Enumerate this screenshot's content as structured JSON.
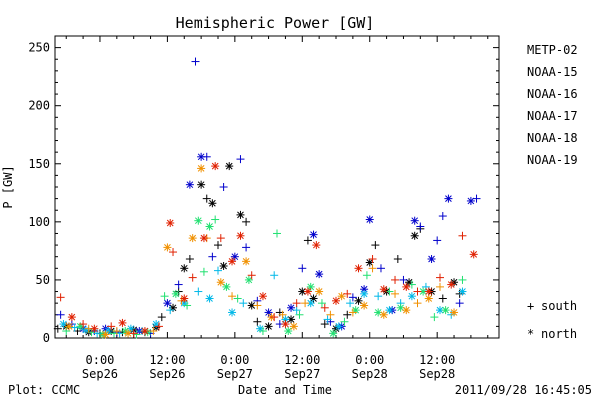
{
  "footer": {
    "left": "Plot: CCMC",
    "center": "Date and Time",
    "right": "2011/09/28 16:45:05"
  },
  "colors": {
    "METP-02": "#000000",
    "NOAA-15": "#0000cc",
    "NOAA-16": "#00b8e8",
    "NOAA-17": "#20e070",
    "NOAA-18": "#f09000",
    "NOAA-19": "#e02000"
  },
  "chart_data": {
    "type": "scatter",
    "title": "Hemispheric Power [GW]",
    "xlabel": "Date and Time",
    "ylabel": "P [GW]",
    "ylim": [
      0,
      260
    ],
    "yticks": [
      0,
      50,
      100,
      150,
      200,
      250
    ],
    "xlim_hours_note": "x is in hours relative to 2011-09-26 00:00",
    "xlim": [
      -8,
      71
    ],
    "xticks": [
      {
        "x": 0,
        "line1": "0:00",
        "line2": "Sep26"
      },
      {
        "x": 12,
        "line1": "12:00",
        "line2": "Sep26"
      },
      {
        "x": 24,
        "line1": "0:00",
        "line2": "Sep27"
      },
      {
        "x": 36,
        "line1": "12:00",
        "line2": "Sep27"
      },
      {
        "x": 48,
        "line1": "0:00",
        "line2": "Sep28"
      },
      {
        "x": 60,
        "line1": "12:00",
        "line2": "Sep28"
      }
    ],
    "legend": {
      "placement": "right",
      "entries": [
        "METP-02",
        "NOAA-15",
        "NOAA-16",
        "NOAA-17",
        "NOAA-18",
        "NOAA-19"
      ],
      "markers": [
        {
          "symbol": "+",
          "label": "south"
        },
        {
          "symbol": "*",
          "label": "north"
        }
      ]
    },
    "grid": false,
    "series": [
      {
        "name": "METP-02",
        "points": [
          [
            -7.5,
            8,
            "+"
          ],
          [
            -6,
            10,
            "*"
          ],
          [
            -4,
            6,
            "+"
          ],
          [
            -2,
            5,
            "*"
          ],
          [
            0,
            4,
            "+"
          ],
          [
            2,
            6,
            "*"
          ],
          [
            4,
            5,
            "+"
          ],
          [
            6,
            7,
            "*"
          ],
          [
            8,
            5,
            "+"
          ],
          [
            10,
            9,
            "*"
          ],
          [
            11,
            18,
            "+"
          ],
          [
            13,
            26,
            "*"
          ],
          [
            14,
            40,
            "+"
          ],
          [
            15,
            60,
            "*"
          ],
          [
            16,
            68,
            "+"
          ],
          [
            18,
            132,
            "*"
          ],
          [
            19,
            120,
            "+"
          ],
          [
            20,
            116,
            "*"
          ],
          [
            21,
            80,
            "+"
          ],
          [
            22,
            62,
            "*"
          ],
          [
            23,
            148,
            "*"
          ],
          [
            25,
            106,
            "*"
          ],
          [
            26,
            100,
            "+"
          ],
          [
            27,
            28,
            "*"
          ],
          [
            28,
            14,
            "+"
          ],
          [
            30,
            10,
            "*"
          ],
          [
            32,
            22,
            "+"
          ],
          [
            34,
            16,
            "*"
          ],
          [
            36,
            40,
            "*"
          ],
          [
            37,
            84,
            "+"
          ],
          [
            38,
            34,
            "*"
          ],
          [
            40,
            12,
            "+"
          ],
          [
            42,
            8,
            "*"
          ],
          [
            44,
            20,
            "+"
          ],
          [
            46,
            32,
            "*"
          ],
          [
            48,
            65,
            "*"
          ],
          [
            49,
            80,
            "+"
          ],
          [
            51,
            40,
            "*"
          ],
          [
            53,
            68,
            "+"
          ],
          [
            55,
            48,
            "*"
          ],
          [
            56,
            88,
            "*"
          ],
          [
            57,
            94,
            "+"
          ],
          [
            59,
            40,
            "*"
          ],
          [
            61,
            34,
            "+"
          ],
          [
            63,
            48,
            "*"
          ],
          [
            64,
            38,
            "+"
          ]
        ]
      },
      {
        "name": "NOAA-15",
        "points": [
          [
            -7,
            20,
            "+"
          ],
          [
            -5,
            12,
            "+"
          ],
          [
            -3,
            8,
            "*"
          ],
          [
            -1,
            6,
            "+"
          ],
          [
            1,
            8,
            "*"
          ],
          [
            3,
            5,
            "+"
          ],
          [
            7,
            6,
            "*"
          ],
          [
            9,
            4,
            "+"
          ],
          [
            12,
            30,
            "*"
          ],
          [
            14,
            46,
            "+"
          ],
          [
            16,
            132,
            "*"
          ],
          [
            17,
            238,
            "+"
          ],
          [
            18,
            156,
            "*"
          ],
          [
            19,
            156,
            "+"
          ],
          [
            20,
            70,
            "+"
          ],
          [
            22,
            130,
            "+"
          ],
          [
            24,
            70,
            "*"
          ],
          [
            25,
            154,
            "+"
          ],
          [
            26,
            78,
            "+"
          ],
          [
            28,
            32,
            "+"
          ],
          [
            30,
            22,
            "*"
          ],
          [
            32,
            12,
            "+"
          ],
          [
            34,
            26,
            "*"
          ],
          [
            36,
            60,
            "+"
          ],
          [
            38,
            89,
            "*"
          ],
          [
            39,
            55,
            "*"
          ],
          [
            41,
            14,
            "+"
          ],
          [
            43,
            10,
            "*"
          ],
          [
            45,
            35,
            "+"
          ],
          [
            47,
            42,
            "*"
          ],
          [
            48,
            102,
            "*"
          ],
          [
            50,
            60,
            "+"
          ],
          [
            52,
            24,
            "*"
          ],
          [
            54,
            50,
            "+"
          ],
          [
            56,
            101,
            "*"
          ],
          [
            57,
            96,
            "+"
          ],
          [
            59,
            68,
            "*"
          ],
          [
            60,
            84,
            "+"
          ],
          [
            61,
            105,
            "+"
          ],
          [
            62,
            120,
            "*"
          ],
          [
            64,
            30,
            "+"
          ],
          [
            66,
            118,
            "*"
          ],
          [
            67,
            120,
            "+"
          ]
        ]
      },
      {
        "name": "NOAA-16",
        "points": [
          [
            -6.5,
            12,
            "*"
          ],
          [
            -4.5,
            9,
            "+"
          ],
          [
            -2.5,
            7,
            "*"
          ],
          [
            -0.5,
            4,
            "+"
          ],
          [
            1.5,
            6,
            "*"
          ],
          [
            3.5,
            4,
            "+"
          ],
          [
            5.5,
            8,
            "*"
          ],
          [
            7.5,
            6,
            "+"
          ],
          [
            10,
            12,
            "*"
          ],
          [
            12.5,
            24,
            "+"
          ],
          [
            15,
            30,
            "*"
          ],
          [
            17.5,
            40,
            "+"
          ],
          [
            19.5,
            34,
            "*"
          ],
          [
            21,
            58,
            "+"
          ],
          [
            23.5,
            22,
            "*"
          ],
          [
            25.5,
            30,
            "+"
          ],
          [
            28.5,
            8,
            "*"
          ],
          [
            31,
            54,
            "+"
          ],
          [
            33,
            16,
            "*"
          ],
          [
            35,
            24,
            "+"
          ],
          [
            37.5,
            30,
            "*"
          ],
          [
            40.5,
            16,
            "+"
          ],
          [
            42.5,
            10,
            "*"
          ],
          [
            44.5,
            30,
            "+"
          ],
          [
            47,
            38,
            "*"
          ],
          [
            49.5,
            36,
            "+"
          ],
          [
            51.5,
            24,
            "*"
          ],
          [
            53.5,
            30,
            "+"
          ],
          [
            55.5,
            36,
            "*"
          ],
          [
            58,
            44,
            "+"
          ],
          [
            60.5,
            24,
            "*"
          ],
          [
            62.5,
            20,
            "+"
          ],
          [
            64.5,
            40,
            "*"
          ]
        ]
      },
      {
        "name": "NOAA-17",
        "points": [
          [
            -6,
            6,
            "+"
          ],
          [
            -3.5,
            10,
            "*"
          ],
          [
            -1.5,
            5,
            "+"
          ],
          [
            0.5,
            3,
            "*"
          ],
          [
            2.5,
            4,
            "+"
          ],
          [
            4.5,
            6,
            "*"
          ],
          [
            6.5,
            3,
            "+"
          ],
          [
            8.5,
            5,
            "*"
          ],
          [
            11.5,
            36,
            "+"
          ],
          [
            13.5,
            38,
            "*"
          ],
          [
            15.5,
            28,
            "+"
          ],
          [
            17.5,
            101,
            "*"
          ],
          [
            18.5,
            57,
            "+"
          ],
          [
            19.5,
            96,
            "*"
          ],
          [
            20.5,
            102,
            "+"
          ],
          [
            22.5,
            44,
            "*"
          ],
          [
            24.5,
            34,
            "+"
          ],
          [
            26.5,
            50,
            "*"
          ],
          [
            29,
            6,
            "+"
          ],
          [
            31.5,
            90,
            "+"
          ],
          [
            33.5,
            6,
            "*"
          ],
          [
            35.5,
            20,
            "+"
          ],
          [
            37.5,
            44,
            "*"
          ],
          [
            39.5,
            30,
            "+"
          ],
          [
            41.5,
            4,
            "*"
          ],
          [
            43.5,
            14,
            "+"
          ],
          [
            45.5,
            24,
            "*"
          ],
          [
            47.5,
            54,
            "+"
          ],
          [
            49.5,
            22,
            "*"
          ],
          [
            51.5,
            40,
            "+"
          ],
          [
            53.5,
            26,
            "*"
          ],
          [
            55.5,
            46,
            "+"
          ],
          [
            57.5,
            40,
            "*"
          ],
          [
            59.5,
            18,
            "+"
          ],
          [
            61.5,
            24,
            "*"
          ],
          [
            64.5,
            50,
            "+"
          ]
        ]
      },
      {
        "name": "NOAA-18",
        "points": [
          [
            -5.5,
            10,
            "*"
          ],
          [
            -2,
            8,
            "+"
          ],
          [
            1,
            3,
            "*"
          ],
          [
            3,
            6,
            "+"
          ],
          [
            5,
            4,
            "*"
          ],
          [
            9.5,
            6,
            "+"
          ],
          [
            12,
            78,
            "*"
          ],
          [
            14.5,
            32,
            "+"
          ],
          [
            16.5,
            86,
            "*"
          ],
          [
            18,
            146,
            "*"
          ],
          [
            19,
            86,
            "+"
          ],
          [
            21.5,
            48,
            "*"
          ],
          [
            23.5,
            36,
            "+"
          ],
          [
            26,
            66,
            "*"
          ],
          [
            28,
            28,
            "+"
          ],
          [
            30.5,
            18,
            "*"
          ],
          [
            32.5,
            20,
            "+"
          ],
          [
            34.5,
            10,
            "*"
          ],
          [
            36.5,
            30,
            "+"
          ],
          [
            39,
            40,
            "*"
          ],
          [
            41,
            20,
            "+"
          ],
          [
            43,
            36,
            "*"
          ],
          [
            45,
            22,
            "+"
          ],
          [
            47,
            28,
            "*"
          ],
          [
            48.5,
            60,
            "+"
          ],
          [
            50.5,
            20,
            "*"
          ],
          [
            52.5,
            38,
            "+"
          ],
          [
            54.5,
            24,
            "*"
          ],
          [
            56.5,
            30,
            "+"
          ],
          [
            58.5,
            34,
            "*"
          ],
          [
            60.5,
            44,
            "+"
          ],
          [
            63,
            22,
            "*"
          ]
        ]
      },
      {
        "name": "NOAA-19",
        "points": [
          [
            -7,
            35,
            "+"
          ],
          [
            -5,
            18,
            "*"
          ],
          [
            -3,
            12,
            "+"
          ],
          [
            -1,
            8,
            "*"
          ],
          [
            2,
            10,
            "+"
          ],
          [
            4,
            13,
            "*"
          ],
          [
            6,
            4,
            "+"
          ],
          [
            8,
            6,
            "*"
          ],
          [
            10.5,
            10,
            "+"
          ],
          [
            12.5,
            99,
            "*"
          ],
          [
            13,
            74,
            "+"
          ],
          [
            15,
            34,
            "*"
          ],
          [
            16.5,
            52,
            "+"
          ],
          [
            18.5,
            86,
            "*"
          ],
          [
            20.5,
            148,
            "*"
          ],
          [
            21.5,
            86,
            "+"
          ],
          [
            23.5,
            66,
            "*"
          ],
          [
            25,
            88,
            "*"
          ],
          [
            27,
            54,
            "+"
          ],
          [
            29,
            36,
            "*"
          ],
          [
            31,
            18,
            "+"
          ],
          [
            33,
            12,
            "*"
          ],
          [
            35,
            30,
            "+"
          ],
          [
            37,
            40,
            "*"
          ],
          [
            38.5,
            80,
            "*"
          ],
          [
            40,
            26,
            "+"
          ],
          [
            42,
            32,
            "*"
          ],
          [
            44,
            38,
            "+"
          ],
          [
            46,
            60,
            "*"
          ],
          [
            48.5,
            68,
            "+"
          ],
          [
            50.5,
            42,
            "*"
          ],
          [
            52.5,
            50,
            "+"
          ],
          [
            54.5,
            44,
            "*"
          ],
          [
            56.5,
            40,
            "+"
          ],
          [
            58.5,
            40,
            "*"
          ],
          [
            60.5,
            52,
            "+"
          ],
          [
            62.5,
            46,
            "*"
          ],
          [
            64.5,
            88,
            "+"
          ],
          [
            66.5,
            72,
            "*"
          ]
        ]
      }
    ]
  }
}
